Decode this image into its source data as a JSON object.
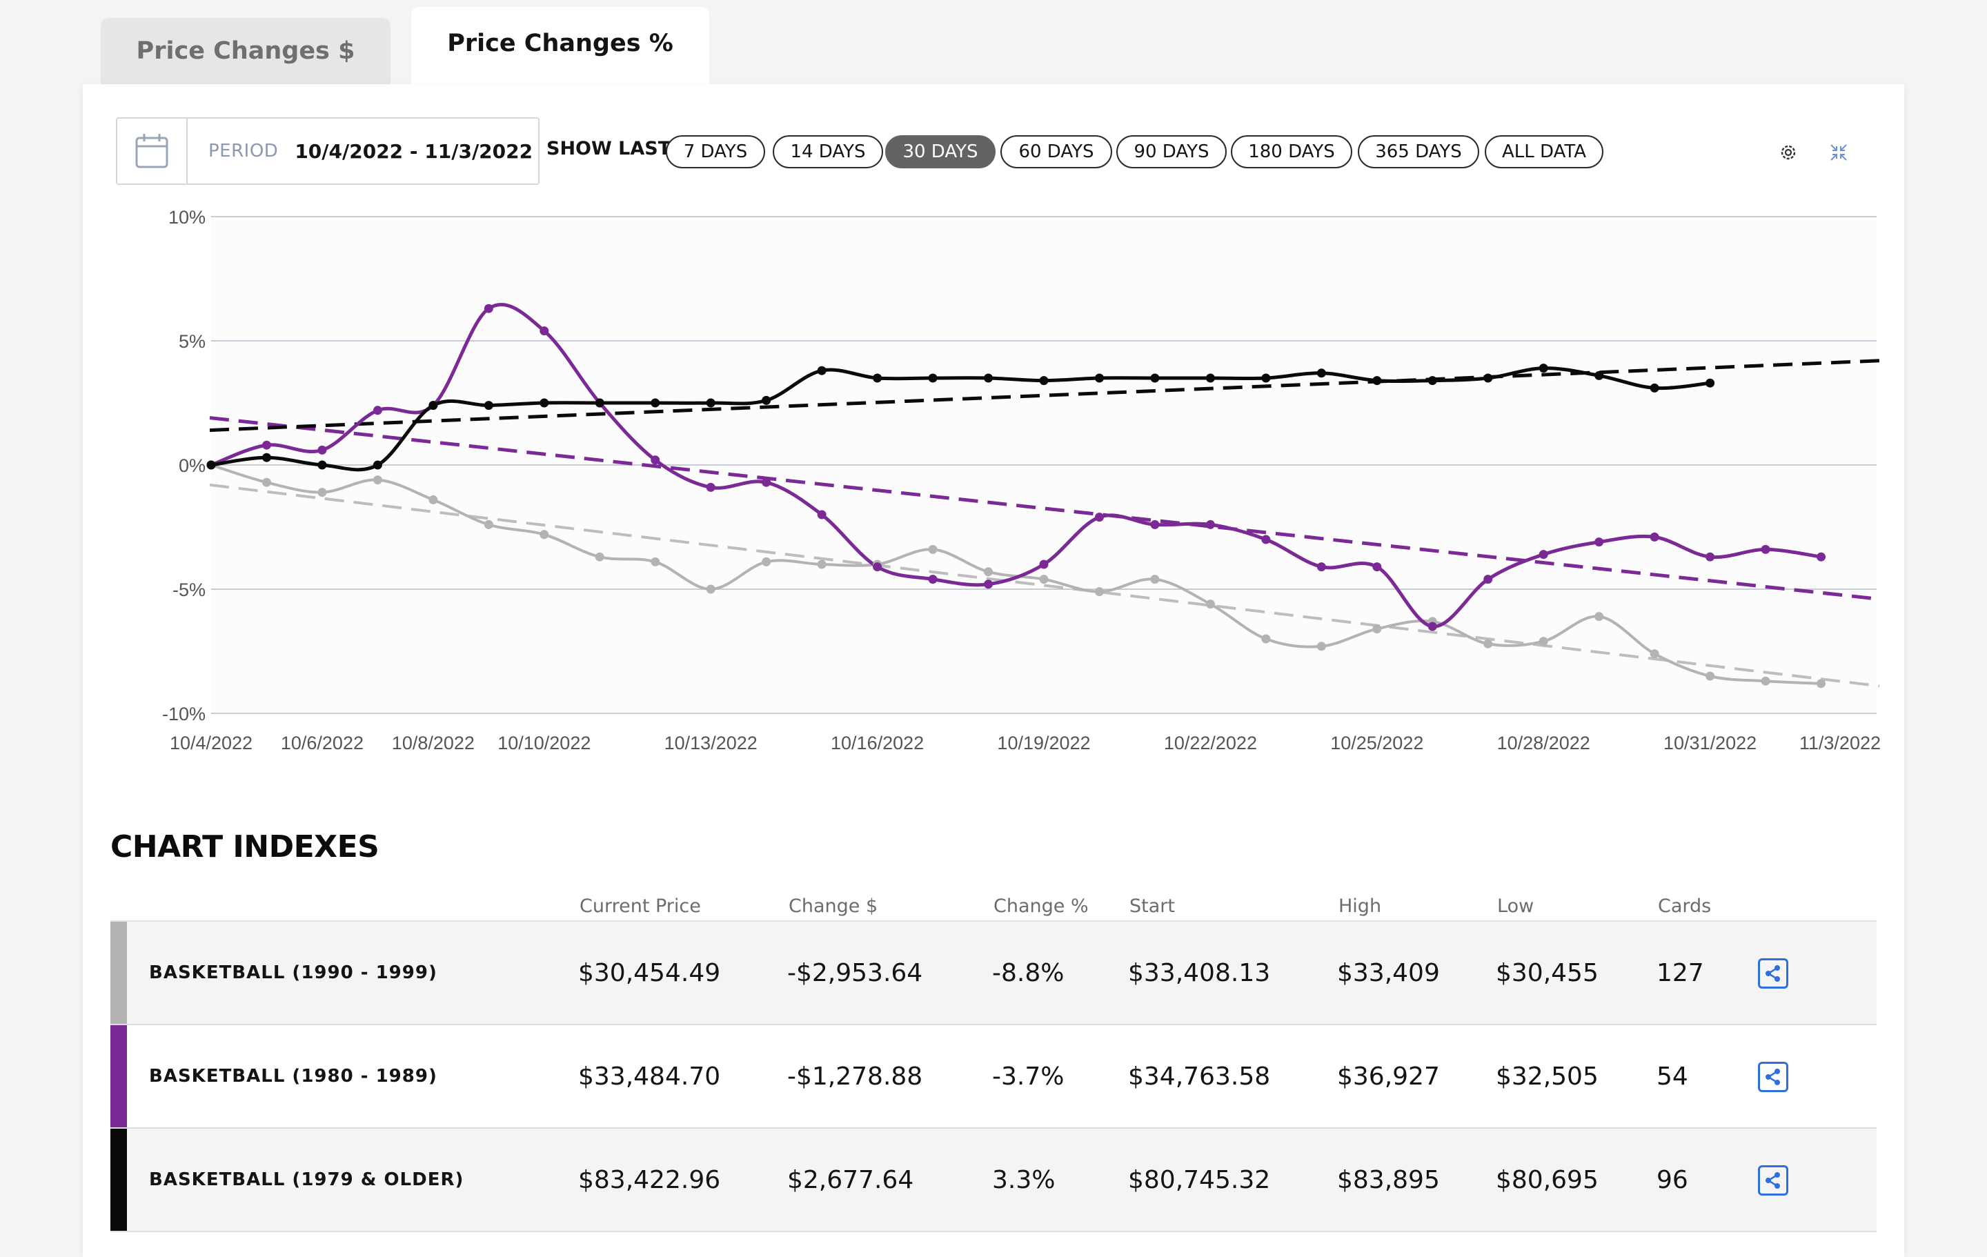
{
  "tabs": [
    {
      "label": "Price Changes $",
      "active": false
    },
    {
      "label": "Price Changes %",
      "active": true
    }
  ],
  "period": {
    "label": "PERIOD",
    "value": "10/4/2022 - 11/3/2022"
  },
  "show_last_label": "SHOW LAST",
  "range_buttons": [
    {
      "label": "7 DAYS",
      "selected": false
    },
    {
      "label": "14 DAYS",
      "selected": false
    },
    {
      "label": "30 DAYS",
      "selected": true
    },
    {
      "label": "60 DAYS",
      "selected": false
    },
    {
      "label": "90 DAYS",
      "selected": false
    },
    {
      "label": "180 DAYS",
      "selected": false
    },
    {
      "label": "365 DAYS",
      "selected": false
    },
    {
      "label": "ALL DATA",
      "selected": false
    }
  ],
  "icons": {
    "calendar": "calendar-icon",
    "settings": "gear-icon",
    "collapse": "collapse-icon",
    "share": "share-icon"
  },
  "chart_data": {
    "type": "line",
    "xlabel": "",
    "ylabel": "",
    "ylim": [
      -10,
      10
    ],
    "y_ticks": [
      "10%",
      "5%",
      "0%",
      "-5%",
      "-10%"
    ],
    "y_tick_values": [
      10,
      5,
      0,
      -5,
      -10
    ],
    "x_ticks": [
      "10/4/2022",
      "10/6/2022",
      "10/8/2022",
      "10/10/2022",
      "10/13/2022",
      "10/16/2022",
      "10/19/2022",
      "10/22/2022",
      "10/25/2022",
      "10/28/2022",
      "10/31/2022",
      "11/3/2022"
    ],
    "x_start": "10/4/2022",
    "x_end": "11/3/2022",
    "grid": true,
    "series": [
      {
        "color": "#b3b3b3",
        "dates": [
          "10/4/2022",
          "10/5/2022",
          "10/6/2022",
          "10/7/2022",
          "10/8/2022",
          "10/9/2022",
          "10/10/2022",
          "10/11/2022",
          "10/12/2022",
          "10/13/2022",
          "10/14/2022",
          "10/15/2022",
          "10/16/2022",
          "10/17/2022",
          "10/18/2022",
          "10/19/2022",
          "10/20/2022",
          "10/21/2022",
          "10/22/2022",
          "10/23/2022",
          "10/24/2022",
          "10/25/2022",
          "10/26/2022",
          "10/27/2022",
          "10/28/2022",
          "10/29/2022",
          "10/30/2022",
          "10/31/2022",
          "11/1/2022",
          "11/2/2022"
        ],
        "values": [
          0,
          -0.7,
          -1.1,
          -0.6,
          -1.4,
          -2.4,
          -2.8,
          -3.7,
          -3.9,
          -5.0,
          -3.9,
          -4.0,
          -4.0,
          -3.4,
          -4.3,
          -4.6,
          -5.1,
          -4.6,
          -5.6,
          -7.0,
          -7.3,
          -6.6,
          -6.3,
          -7.2,
          -7.1,
          -6.1,
          -7.6,
          -8.5,
          -8.7,
          -8.8
        ],
        "trend": [
          -0.8,
          -8.9
        ]
      },
      {
        "color": "#7b2a95",
        "dates": [
          "10/4/2022",
          "10/5/2022",
          "10/6/2022",
          "10/7/2022",
          "10/8/2022",
          "10/9/2022",
          "10/10/2022",
          "10/11/2022",
          "10/12/2022",
          "10/13/2022",
          "10/14/2022",
          "10/15/2022",
          "10/16/2022",
          "10/17/2022",
          "10/18/2022",
          "10/19/2022",
          "10/20/2022",
          "10/21/2022",
          "10/22/2022",
          "10/23/2022",
          "10/24/2022",
          "10/25/2022",
          "10/26/2022",
          "10/27/2022",
          "10/28/2022",
          "10/29/2022",
          "10/30/2022",
          "10/31/2022",
          "11/1/2022",
          "11/2/2022"
        ],
        "values": [
          0,
          0.8,
          0.6,
          2.2,
          2.4,
          6.3,
          5.4,
          2.5,
          0.2,
          -0.9,
          -0.7,
          -2.0,
          -4.1,
          -4.6,
          -4.8,
          -4.0,
          -2.1,
          -2.4,
          -2.4,
          -3.0,
          -4.1,
          -4.1,
          -6.5,
          -4.6,
          -3.6,
          -3.1,
          -2.9,
          -3.7,
          -3.4,
          -3.7
        ],
        "trend": [
          1.9,
          -5.4
        ]
      },
      {
        "color": "#0a0a0a",
        "dates": [
          "10/4/2022",
          "10/5/2022",
          "10/6/2022",
          "10/7/2022",
          "10/8/2022",
          "10/9/2022",
          "10/10/2022",
          "10/11/2022",
          "10/12/2022",
          "10/13/2022",
          "10/14/2022",
          "10/15/2022",
          "10/16/2022",
          "10/17/2022",
          "10/18/2022",
          "10/19/2022",
          "10/20/2022",
          "10/21/2022",
          "10/22/2022",
          "10/23/2022",
          "10/24/2022",
          "10/25/2022",
          "10/26/2022",
          "10/27/2022",
          "10/28/2022",
          "10/29/2022",
          "10/30/2022",
          "10/31/2022"
        ],
        "values": [
          0,
          0.3,
          0,
          0,
          2.4,
          2.4,
          2.5,
          2.5,
          2.5,
          2.5,
          2.6,
          3.8,
          3.5,
          3.5,
          3.5,
          3.4,
          3.5,
          3.5,
          3.5,
          3.5,
          3.7,
          3.4,
          3.4,
          3.5,
          3.9,
          3.6,
          3.1,
          3.3
        ],
        "trend": [
          1.4,
          4.2
        ]
      }
    ]
  },
  "table": {
    "title": "CHART INDEXES",
    "headers": [
      "Current Price",
      "Change $",
      "Change %",
      "Start",
      "High",
      "Low",
      "Cards"
    ],
    "rows": [
      {
        "name": "BASKETBALL (1990 - 1999)",
        "color": "#b3b3b3",
        "bg": "#f4f4f4",
        "current": "$30,454.49",
        "change_d": "-$2,953.64",
        "change_p": "-8.8%",
        "start": "$33,408.13",
        "high": "$33,409",
        "low": "$30,455",
        "cards": "127"
      },
      {
        "name": "BASKETBALL (1980 - 1989)",
        "color": "#7b2a95",
        "bg": "#ffffff",
        "current": "$33,484.70",
        "change_d": "-$1,278.88",
        "change_p": "-3.7%",
        "start": "$34,763.58",
        "high": "$36,927",
        "low": "$32,505",
        "cards": "54"
      },
      {
        "name": "BASKETBALL (1979 & OLDER)",
        "color": "#0a0a0a",
        "bg": "#f4f4f4",
        "current": "$83,422.96",
        "change_d": "$2,677.64",
        "change_p": "3.3%",
        "start": "$80,745.32",
        "high": "$83,895",
        "low": "$80,695",
        "cards": "96"
      }
    ]
  }
}
